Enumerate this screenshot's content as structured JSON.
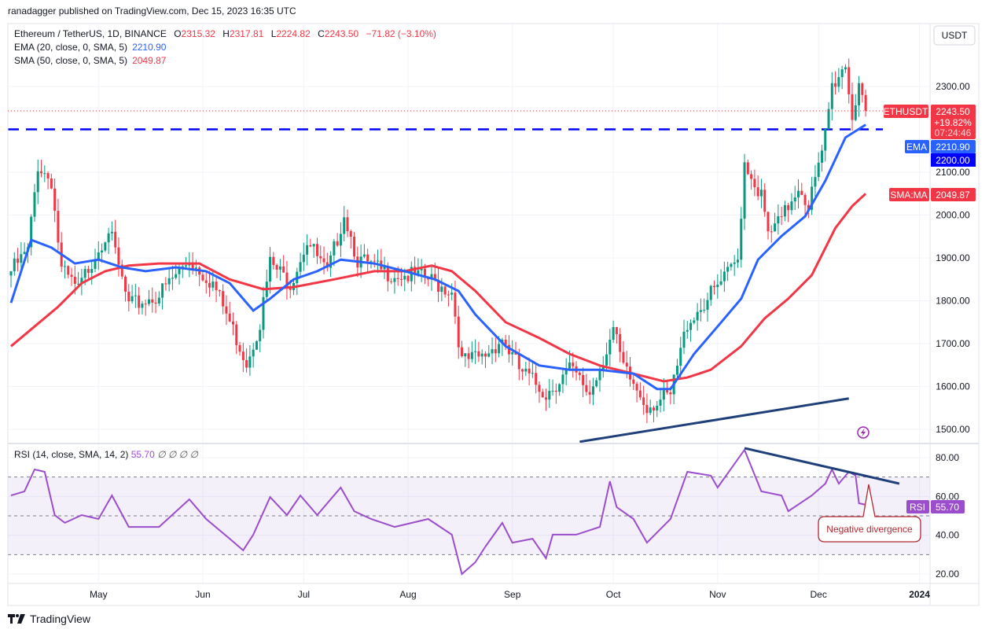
{
  "header": {
    "published": "ranadagger published on TradingView.com, Dec 15, 2023 16:35 UTC"
  },
  "legend": {
    "symbol": "Ethereum / TetherUS, 1D, BINANCE",
    "o_label": "O",
    "o": "2315.32",
    "h_label": "H",
    "h": "2317.81",
    "l_label": "L",
    "l": "2224.82",
    "c_label": "C",
    "c": "2243.50",
    "change": "−71.82 (−3.10%)",
    "ema_label": "EMA (20, close, 0, SMA, 5)",
    "ema_value": "2210.90",
    "sma_label": "SMA (50, close, 0, SMA, 5)",
    "sma_value": "2049.87",
    "rsi_label": "RSI (14, close, SMA, 14, 2)",
    "rsi_value": "55.70",
    "rsi_extra": "∅ ∅ ∅ ∅"
  },
  "currency": "USDT",
  "price_labels": {
    "symbol_tag": "ETHUSDT",
    "last_price": "2243.50",
    "last_change": "+19.82%",
    "countdown": "07:24:46",
    "ema_tag": "EMA",
    "ema_price": "2210.90",
    "level_price": "2200.00",
    "sma_tag": "SMA:MA",
    "sma_price": "2049.87",
    "rsi_tag": "RSI",
    "rsi_price": "55.70"
  },
  "annotation": "Negative divergence",
  "footer": {
    "brand": "TradingView"
  },
  "colors": {
    "up": "#089981",
    "down": "#f23645",
    "ema": "#2962ff",
    "sma": "#f23645",
    "rsi": "#9c4dcc",
    "level": "#0000ff",
    "trend": "#1e3f7a"
  },
  "chart_data": {
    "type": "candlestick",
    "title": "Ethereum / TetherUS, 1D, BINANCE",
    "x_unit": "day index (0 = first visible day, ~Apr 5 2023; 254 = Dec 15 2023)",
    "x_ticks": [
      {
        "label": "May",
        "day": 26
      },
      {
        "label": "Jun",
        "day": 57
      },
      {
        "label": "Jul",
        "day": 87
      },
      {
        "label": "Aug",
        "day": 118
      },
      {
        "label": "Sep",
        "day": 149
      },
      {
        "label": "Oct",
        "day": 179
      },
      {
        "label": "Nov",
        "day": 210
      },
      {
        "label": "Dec",
        "day": 240
      },
      {
        "label": "2024",
        "day": 270
      }
    ],
    "price_ticks": [
      2300,
      2100,
      2000,
      1900,
      1800,
      1700,
      1600,
      1500
    ],
    "price_range": [
      1470,
      2420
    ],
    "close_anchors": [
      [
        0,
        1869
      ],
      [
        5,
        1915
      ],
      [
        8,
        2117
      ],
      [
        12,
        2080
      ],
      [
        15,
        1870
      ],
      [
        20,
        1823
      ],
      [
        23,
        1878
      ],
      [
        29,
        1970
      ],
      [
        35,
        1786
      ],
      [
        44,
        1814
      ],
      [
        53,
        1896
      ],
      [
        60,
        1841
      ],
      [
        65,
        1750
      ],
      [
        70,
        1658
      ],
      [
        74,
        1750
      ],
      [
        77,
        1887
      ],
      [
        83,
        1841
      ],
      [
        88,
        1942
      ],
      [
        94,
        1860
      ],
      [
        99,
        2006
      ],
      [
        103,
        1896
      ],
      [
        110,
        1869
      ],
      [
        117,
        1860
      ],
      [
        124,
        1850
      ],
      [
        131,
        1823
      ],
      [
        134,
        1658
      ],
      [
        140,
        1667
      ],
      [
        146,
        1713
      ],
      [
        151,
        1640
      ],
      [
        159,
        1584
      ],
      [
        166,
        1640
      ],
      [
        172,
        1584
      ],
      [
        176,
        1667
      ],
      [
        179,
        1731
      ],
      [
        182,
        1640
      ],
      [
        189,
        1557
      ],
      [
        196,
        1575
      ],
      [
        201,
        1750
      ],
      [
        205,
        1786
      ],
      [
        212,
        1850
      ],
      [
        216,
        1896
      ],
      [
        218,
        2126
      ],
      [
        223,
        2043
      ],
      [
        225,
        1951
      ],
      [
        229,
        1988
      ],
      [
        234,
        2071
      ],
      [
        237,
        2025
      ],
      [
        241,
        2135
      ],
      [
        244,
        2300
      ],
      [
        248,
        2355
      ],
      [
        250,
        2227
      ],
      [
        252,
        2315
      ],
      [
        254,
        2243.5
      ]
    ],
    "ema20": [
      [
        0,
        1795
      ],
      [
        6,
        1942
      ],
      [
        12,
        1924
      ],
      [
        19,
        1887
      ],
      [
        26,
        1896
      ],
      [
        33,
        1878
      ],
      [
        40,
        1869
      ],
      [
        49,
        1878
      ],
      [
        58,
        1869
      ],
      [
        65,
        1841
      ],
      [
        72,
        1777
      ],
      [
        77,
        1805
      ],
      [
        84,
        1850
      ],
      [
        91,
        1869
      ],
      [
        98,
        1896
      ],
      [
        108,
        1887
      ],
      [
        117,
        1869
      ],
      [
        126,
        1850
      ],
      [
        133,
        1823
      ],
      [
        138,
        1768
      ],
      [
        147,
        1694
      ],
      [
        157,
        1649
      ],
      [
        166,
        1639
      ],
      [
        175,
        1639
      ],
      [
        185,
        1630
      ],
      [
        192,
        1594
      ],
      [
        196,
        1594
      ],
      [
        203,
        1676
      ],
      [
        210,
        1740
      ],
      [
        217,
        1805
      ],
      [
        222,
        1896
      ],
      [
        229,
        1951
      ],
      [
        236,
        1997
      ],
      [
        242,
        2080
      ],
      [
        248,
        2181
      ],
      [
        254,
        2210.9
      ]
    ],
    "sma50": [
      [
        0,
        1694
      ],
      [
        7,
        1740
      ],
      [
        14,
        1786
      ],
      [
        21,
        1841
      ],
      [
        28,
        1869
      ],
      [
        35,
        1882
      ],
      [
        44,
        1887
      ],
      [
        56,
        1887
      ],
      [
        65,
        1850
      ],
      [
        75,
        1827
      ],
      [
        84,
        1832
      ],
      [
        96,
        1850
      ],
      [
        108,
        1869
      ],
      [
        117,
        1869
      ],
      [
        125,
        1882
      ],
      [
        131,
        1869
      ],
      [
        138,
        1823
      ],
      [
        147,
        1750
      ],
      [
        157,
        1713
      ],
      [
        166,
        1676
      ],
      [
        175,
        1649
      ],
      [
        185,
        1630
      ],
      [
        194,
        1612
      ],
      [
        201,
        1621
      ],
      [
        208,
        1639
      ],
      [
        217,
        1694
      ],
      [
        224,
        1759
      ],
      [
        231,
        1805
      ],
      [
        238,
        1860
      ],
      [
        245,
        1970
      ],
      [
        250,
        2021
      ],
      [
        254,
        2049.87
      ]
    ],
    "horizontal_level": 2200,
    "support_trendline": [
      [
        169,
        1471
      ],
      [
        249,
        1572
      ]
    ],
    "rsi": {
      "range": [
        15,
        88
      ],
      "ticks": [
        80,
        60,
        40,
        20
      ],
      "band": [
        30,
        70
      ],
      "mid": 50,
      "values": [
        [
          0,
          60.5
        ],
        [
          4,
          62.6
        ],
        [
          7,
          73.9
        ],
        [
          10,
          72.7
        ],
        [
          13,
          50.4
        ],
        [
          16,
          46.4
        ],
        [
          21,
          50.4
        ],
        [
          26,
          48.4
        ],
        [
          30,
          60.5
        ],
        [
          35,
          44.3
        ],
        [
          44,
          44.3
        ],
        [
          53,
          58.5
        ],
        [
          58,
          48.4
        ],
        [
          65,
          38.2
        ],
        [
          69,
          32.2
        ],
        [
          72,
          40.3
        ],
        [
          77,
          59.7
        ],
        [
          82,
          50.4
        ],
        [
          86,
          60.5
        ],
        [
          91,
          50.4
        ],
        [
          98,
          64.6
        ],
        [
          102,
          52.4
        ],
        [
          107,
          48.4
        ],
        [
          114,
          44.3
        ],
        [
          124,
          48.4
        ],
        [
          131,
          40.3
        ],
        [
          134,
          20
        ],
        [
          138,
          26.1
        ],
        [
          141,
          34.2
        ],
        [
          146,
          46.4
        ],
        [
          149,
          36.2
        ],
        [
          155,
          38.2
        ],
        [
          159,
          28.1
        ],
        [
          161,
          40.3
        ],
        [
          168,
          40.3
        ],
        [
          175,
          44.3
        ],
        [
          178,
          67.8
        ],
        [
          180,
          54.5
        ],
        [
          185,
          48.4
        ],
        [
          189,
          36.2
        ],
        [
          196,
          48.4
        ],
        [
          201,
          72.7
        ],
        [
          208,
          70.7
        ],
        [
          210,
          64.6
        ],
        [
          218,
          84
        ],
        [
          223,
          62.6
        ],
        [
          229,
          60.5
        ],
        [
          231,
          52.4
        ],
        [
          238,
          60.5
        ],
        [
          242,
          66.6
        ],
        [
          244,
          73.9
        ],
        [
          246,
          66.6
        ],
        [
          249,
          72.7
        ],
        [
          251,
          70.7
        ],
        [
          252,
          56.5
        ],
        [
          254,
          55.7
        ]
      ],
      "trendline": [
        [
          218,
          84.9
        ],
        [
          264,
          66.6
        ]
      ]
    }
  }
}
